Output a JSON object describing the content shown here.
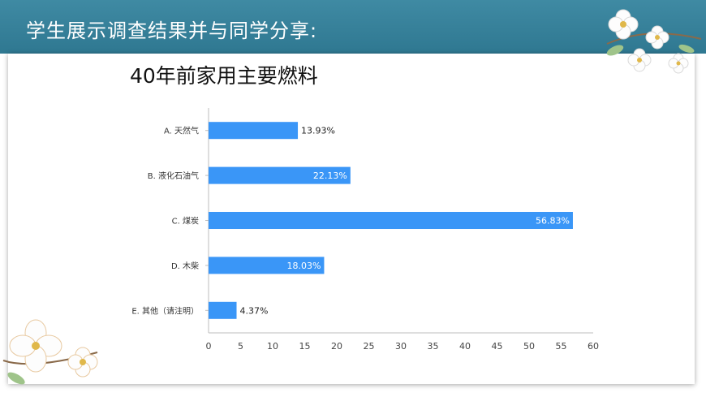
{
  "header": {
    "title": "学生展示调查结果并与同学分享:"
  },
  "colors": {
    "header": "#3a849d",
    "bar": "#3a96f7",
    "axis": "#bdbdbd"
  },
  "decorations": [
    "flower-icon",
    "leaf-icon"
  ],
  "chart_data": {
    "type": "bar",
    "orientation": "horizontal",
    "title": "40年前家用主要燃料",
    "categories": [
      "A. 天然气",
      "B. 液化石油气",
      "C. 煤炭",
      "D. 木柴",
      "E. 其他（请注明）"
    ],
    "values": [
      13.93,
      22.13,
      56.83,
      18.03,
      4.37
    ],
    "data_labels": [
      "13.93%",
      "22.13%",
      "56.83%",
      "18.03%",
      "4.37%"
    ],
    "xlim": [
      0,
      60
    ],
    "xticks": [
      "0",
      "5",
      "10",
      "15",
      "20",
      "25",
      "30",
      "35",
      "40",
      "45",
      "50",
      "55",
      "60"
    ],
    "xlabel": "",
    "ylabel": "",
    "grid": false,
    "legend": "none"
  }
}
